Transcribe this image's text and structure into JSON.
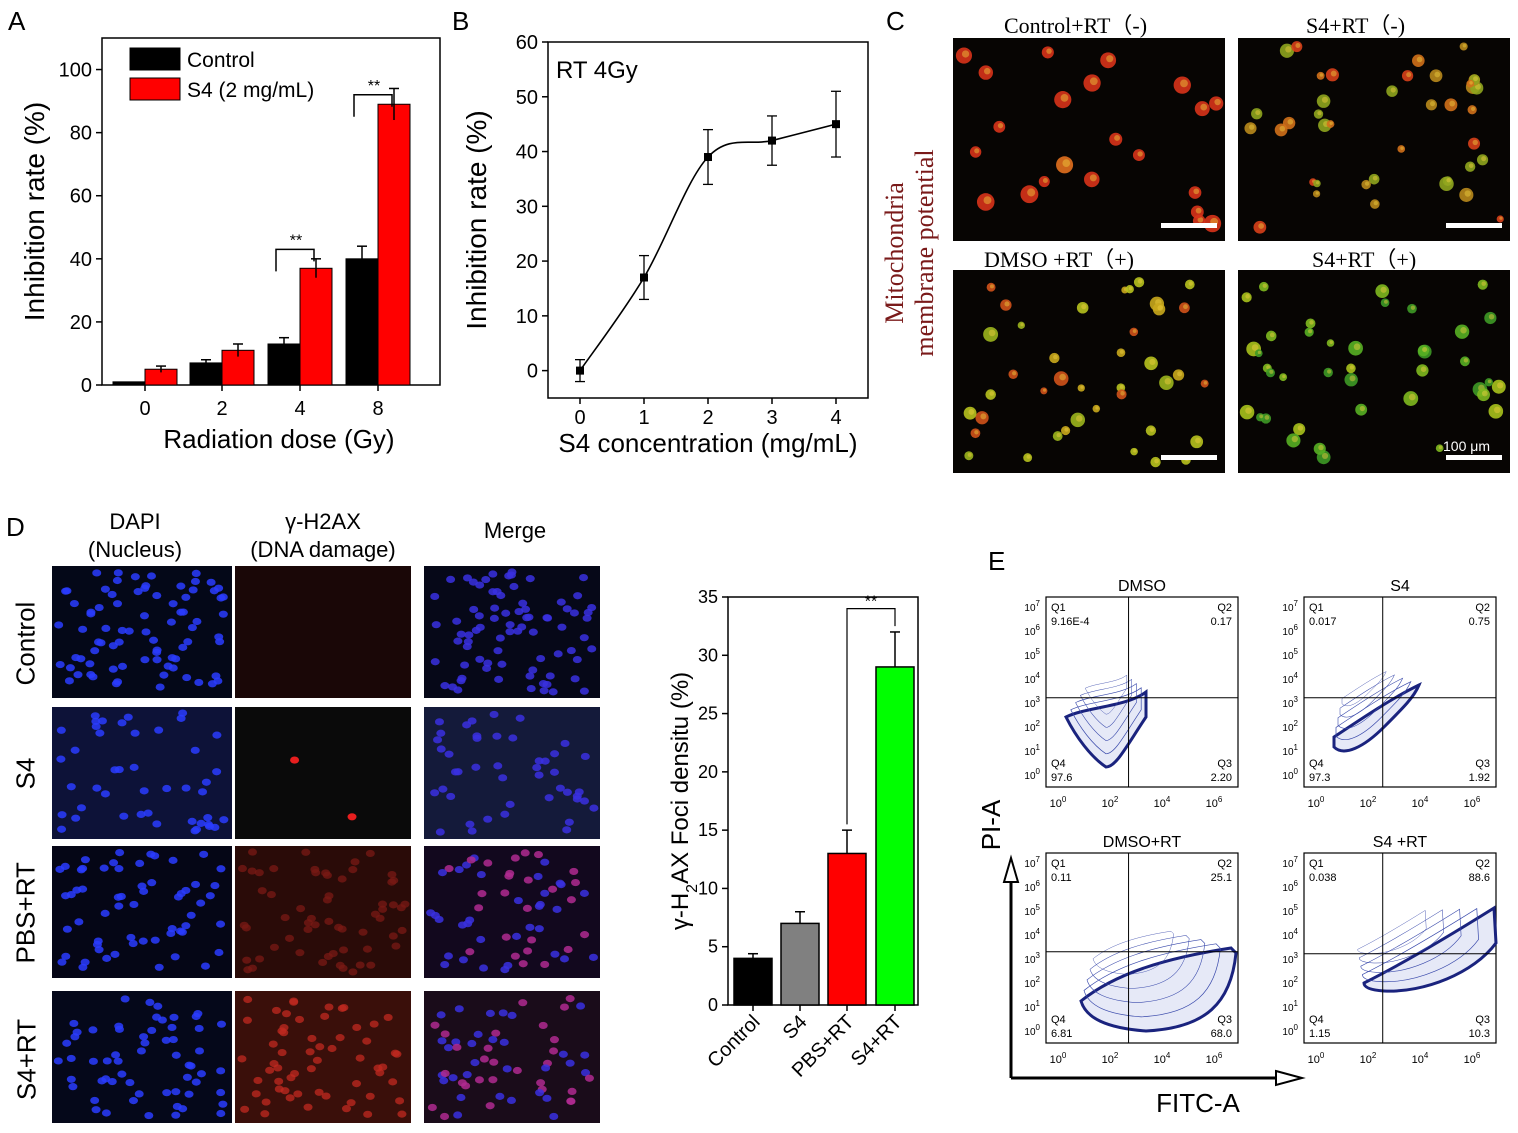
{
  "panels": {
    "A": {
      "letter": "A"
    },
    "B": {
      "letter": "B"
    },
    "C": {
      "letter": "C"
    },
    "D": {
      "letter": "D"
    },
    "E": {
      "letter": "E"
    }
  },
  "chart_data": [
    {
      "id": "A",
      "type": "bar",
      "categories": [
        "0",
        "2",
        "4",
        "8"
      ],
      "series": [
        {
          "name": "Control",
          "values": [
            1,
            7,
            13,
            40
          ],
          "errors": [
            0,
            1,
            2,
            4
          ],
          "color": "#000000"
        },
        {
          "name": "S4 (2 mg/mL)",
          "values": [
            5,
            11,
            37,
            89
          ],
          "errors": [
            1,
            2,
            3,
            5
          ],
          "color": "#ff0000"
        }
      ],
      "xlabel": "Radiation dose (Gy)",
      "ylabel": "Inhibition rate (%)",
      "ylim": [
        0,
        110
      ],
      "yticks": [
        "0",
        "20",
        "40",
        "60",
        "80",
        "100"
      ],
      "significance": [
        "**",
        "**"
      ]
    },
    {
      "id": "B",
      "type": "line",
      "x": [
        0,
        1,
        2,
        3,
        4
      ],
      "y": [
        0,
        17,
        39,
        42,
        45
      ],
      "errors": [
        2,
        4,
        5,
        4.5,
        6
      ],
      "annotation": "RT 4Gy",
      "xlabel": "S4 concentration (mg/mL)",
      "ylabel": "Inhibition rate (%)",
      "xticks": [
        "0",
        "1",
        "2",
        "3",
        "4"
      ],
      "yticks": [
        "0",
        "10",
        "20",
        "30",
        "40",
        "50",
        "60"
      ],
      "ylim": [
        -5,
        60
      ]
    },
    {
      "id": "D-bar",
      "type": "bar",
      "categories": [
        "Control",
        "S4",
        "PBS+RT",
        "S4+RT"
      ],
      "values": [
        4,
        7,
        13,
        29
      ],
      "errors": [
        0.4,
        1,
        2,
        3
      ],
      "colors": [
        "#000000",
        "#808080",
        "#ff0000",
        "#00ff00"
      ],
      "ylabel_parts": [
        "γ-H",
        "2",
        "AX Foci densitu (%)"
      ],
      "ylim": [
        0,
        35
      ],
      "yticks": [
        "0",
        "5",
        "10",
        "15",
        "20",
        "25",
        "30",
        "35"
      ],
      "significance": "**"
    }
  ],
  "panelC": {
    "side_label_1": "Mitochondria",
    "side_label_2": "membrane potential",
    "titles": [
      "Control+RT（-)",
      "S4+RT（-)",
      "DMSO +RT（+)",
      "S4+RT（+)"
    ],
    "scalebar_label": "100 μm"
  },
  "panelD": {
    "col_headers": [
      {
        "line1": "DAPI",
        "line2": "(Nucleus)"
      },
      {
        "line1": "γ-H2AX",
        "line2": "(DNA damage)"
      },
      {
        "line1": "Merge",
        "line2": ""
      }
    ],
    "row_labels": [
      "Control",
      "S4",
      "PBS+RT",
      "S4+RT"
    ]
  },
  "panelE": {
    "xlabel": "FITC-A",
    "ylabel": "PI-A",
    "xticks": [
      "10",
      "10",
      "10",
      "10"
    ],
    "xexp": [
      "0",
      "2",
      "4",
      "6"
    ],
    "yticks": [
      "10",
      "10",
      "10",
      "10",
      "10",
      "10",
      "10",
      "10"
    ],
    "yexp": [
      "0",
      "1",
      "2",
      "3",
      "4",
      "5",
      "6",
      "7"
    ],
    "plots": [
      {
        "title": "DMSO",
        "q1": "Q1",
        "q1v": "9.16E-4",
        "q2": "Q2",
        "q2v": "0.17",
        "q3": "Q3",
        "q3v": "2.20",
        "q4": "Q4",
        "q4v": "97.6"
      },
      {
        "title": "S4",
        "q1": "Q1",
        "q1v": "0.017",
        "q2": "Q2",
        "q2v": "0.75",
        "q3": "Q3",
        "q3v": "1.92",
        "q4": "Q4",
        "q4v": "97.3"
      },
      {
        "title": "DMSO+RT",
        "q1": "Q1",
        "q1v": "0.11",
        "q2": "Q2",
        "q2v": "25.1",
        "q3": "Q3",
        "q3v": "68.0",
        "q4": "Q4",
        "q4v": "6.81"
      },
      {
        "title": "S4 +RT",
        "q1": "Q1",
        "q1v": "0.038",
        "q2": "Q2",
        "q2v": "88.6",
        "q3": "Q3",
        "q3v": "10.3",
        "q4": "Q4",
        "q4v": "1.15"
      }
    ]
  }
}
